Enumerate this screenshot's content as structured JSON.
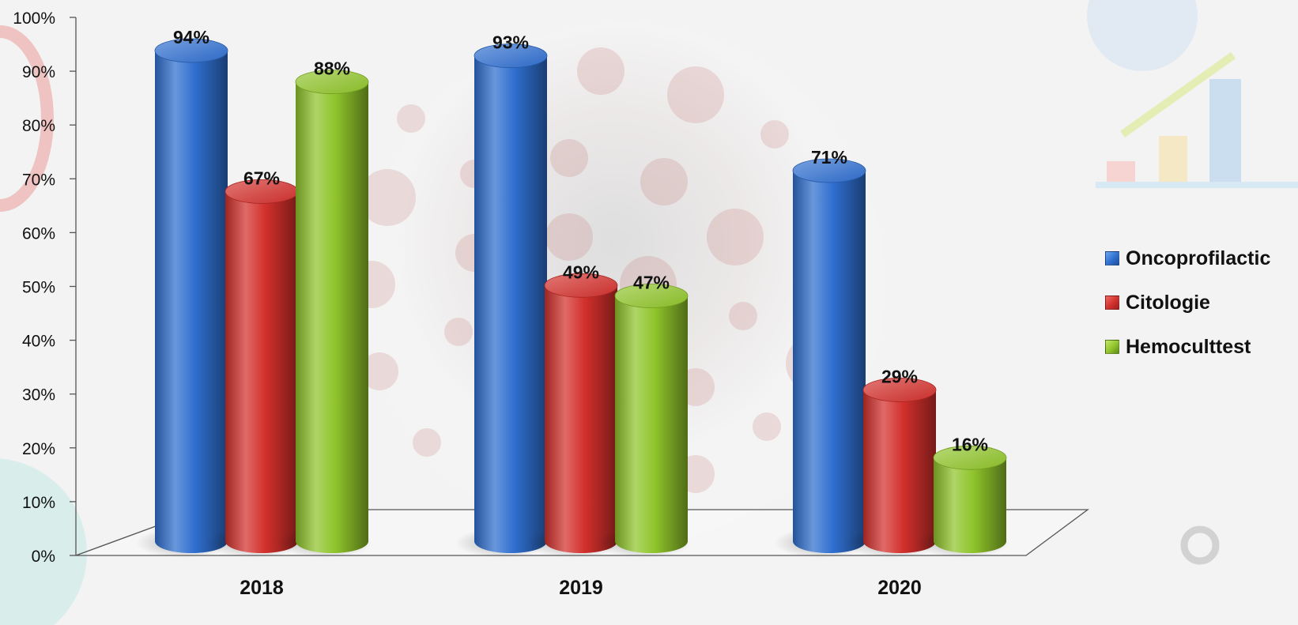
{
  "chart_data": {
    "type": "bar",
    "categories": [
      "2018",
      "2019",
      "2020"
    ],
    "series": [
      {
        "name": "Oncoprofilactic",
        "values": [
          94,
          93,
          71
        ],
        "color": "#2f6fcf"
      },
      {
        "name": "Citologie",
        "values": [
          67,
          49,
          29
        ],
        "color": "#d2302c"
      },
      {
        "name": "Hemoculttest",
        "values": [
          88,
          47,
          16
        ],
        "color": "#8fc42a"
      }
    ],
    "data_labels": [
      [
        "94%",
        "93%",
        "71%"
      ],
      [
        "67%",
        "49%",
        "29%"
      ],
      [
        "88%",
        "47%",
        "16%"
      ]
    ],
    "y_ticks": [
      "0%",
      "10%",
      "20%",
      "30%",
      "40%",
      "50%",
      "60%",
      "70%",
      "80%",
      "90%",
      "100%"
    ],
    "ylim": [
      0,
      100
    ],
    "legend_position": "right",
    "style": "3d-cylinder",
    "title": "",
    "xlabel": "",
    "ylabel": ""
  }
}
